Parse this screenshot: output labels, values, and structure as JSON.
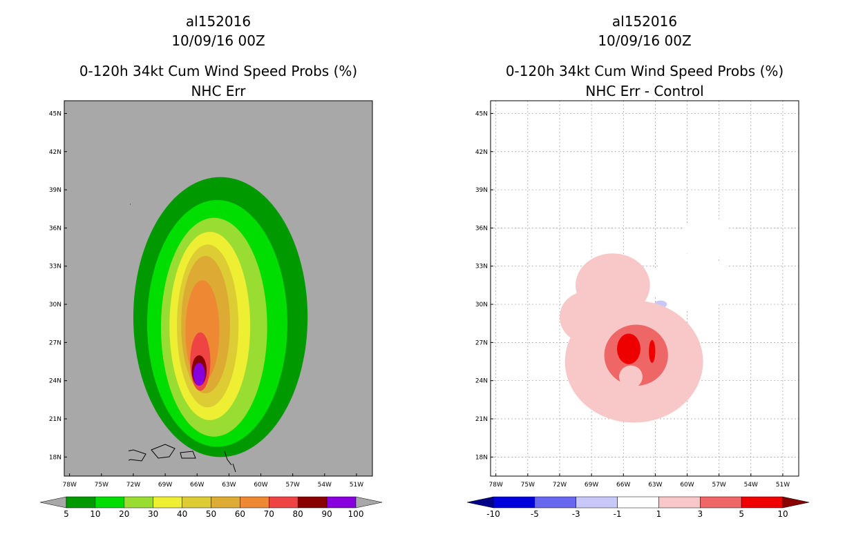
{
  "chart_data": [
    {
      "type": "heatmap",
      "title": [
        "al152016",
        "10/09/16 00Z",
        "0-120h 34kt Cum Wind Speed Probs (%)",
        "NHC Err"
      ],
      "xlabel": "",
      "ylabel": "",
      "x_ticks": [
        "78W",
        "75W",
        "72W",
        "69W",
        "66W",
        "63W",
        "60W",
        "57W",
        "54W",
        "51W"
      ],
      "y_ticks": [
        "45N",
        "42N",
        "39N",
        "36N",
        "33N",
        "30N",
        "27N",
        "24N",
        "21N",
        "18N"
      ],
      "xlim": [
        -78.5,
        -49.5
      ],
      "ylim": [
        16.5,
        46
      ],
      "grid": false,
      "background_color": "#a8a8a8",
      "colorbar": {
        "labels": [
          "5",
          "10",
          "20",
          "30",
          "40",
          "50",
          "60",
          "70",
          "80",
          "90",
          "100"
        ],
        "colors": [
          "#009900",
          "#00dd00",
          "#99dd33",
          "#eeee33",
          "#ddcc33",
          "#ddaa33",
          "#ee8833",
          "#ee4444",
          "#880000",
          "#8800dd"
        ],
        "under_color": "#a8a8a8",
        "over_color": "#a8a8a8"
      },
      "contours": [
        {
          "level": 5,
          "center": [
            -63.8,
            29.0
          ],
          "rx": 8.2,
          "ry": 11.0
        },
        {
          "level": 10,
          "center": [
            -64.1,
            28.5
          ],
          "rx": 6.6,
          "ry": 9.7
        },
        {
          "level": 20,
          "center": [
            -64.4,
            28.2
          ],
          "rx": 5.0,
          "ry": 8.6
        },
        {
          "level": 30,
          "center": [
            -64.8,
            28.3
          ],
          "rx": 3.8,
          "ry": 7.4
        },
        {
          "level": 40,
          "center": [
            -65.0,
            28.3
          ],
          "rx": 2.9,
          "ry": 6.4
        },
        {
          "level": 50,
          "center": [
            -65.2,
            28.4
          ],
          "rx": 2.3,
          "ry": 5.4
        },
        {
          "level": 60,
          "center": [
            -65.5,
            27.9
          ],
          "rx": 1.6,
          "ry": 4.0
        },
        {
          "level": 70,
          "center": [
            -65.7,
            25.5
          ],
          "rx": 0.95,
          "ry": 2.3
        },
        {
          "level": 80,
          "center": [
            -65.8,
            24.8
          ],
          "rx": 0.7,
          "ry": 1.2
        },
        {
          "level": 90,
          "center": [
            -65.8,
            24.5
          ],
          "rx": 0.55,
          "ry": 0.9
        },
        {
          "level": 100,
          "center": [
            -65.8,
            24.4
          ],
          "rx": 0.45,
          "ry": 0.75
        }
      ]
    },
    {
      "type": "heatmap",
      "title": [
        "al152016",
        "10/09/16 00Z",
        "0-120h 34kt Cum Wind Speed Probs (%)",
        "NHC Err - Control"
      ],
      "xlabel": "",
      "ylabel": "",
      "x_ticks": [
        "78W",
        "75W",
        "72W",
        "69W",
        "66W",
        "63W",
        "60W",
        "57W",
        "54W",
        "51W"
      ],
      "y_ticks": [
        "45N",
        "42N",
        "39N",
        "36N",
        "33N",
        "30N",
        "27N",
        "24N",
        "21N",
        "18N"
      ],
      "xlim": [
        -78.5,
        -49.5
      ],
      "ylim": [
        16.5,
        46
      ],
      "grid": true,
      "background_color": "#ffffff",
      "colorbar": {
        "labels": [
          "-10",
          "-5",
          "-3",
          "-1",
          "1",
          "3",
          "5",
          "10"
        ],
        "colors": [
          "#0000dd",
          "#6666ee",
          "#c8c8f8",
          "#ffffff",
          "#f8c8c8",
          "#ee6666",
          "#ee0000"
        ],
        "under_color": "#000088",
        "over_color": "#880000"
      },
      "contours": [
        {
          "level": -1,
          "center": [
            -59.5,
            31.7
          ],
          "rx": 4.0,
          "ry": 2.2
        },
        {
          "level": -1,
          "center": [
            -58.3,
            35.2
          ],
          "rx": 2.3,
          "ry": 1.8
        },
        {
          "level": -3,
          "center": [
            -62.5,
            30.0
          ],
          "rx": 0.6,
          "ry": 0.3
        },
        {
          "level": 1,
          "center": [
            -65.0,
            25.5
          ],
          "rx": 6.5,
          "ry": 4.8
        },
        {
          "level": 1,
          "center": [
            -67.0,
            31.5
          ],
          "rx": 3.5,
          "ry": 2.5
        },
        {
          "level": 1,
          "center": [
            -69.5,
            29.0
          ],
          "rx": 2.5,
          "ry": 2.0
        },
        {
          "level": 3,
          "center": [
            -64.8,
            26.0
          ],
          "rx": 3.0,
          "ry": 2.4
        },
        {
          "level": 5,
          "center": [
            -65.5,
            26.5
          ],
          "rx": 1.1,
          "ry": 1.2
        },
        {
          "level": 5,
          "center": [
            -63.3,
            26.3
          ],
          "rx": 0.3,
          "ry": 0.9
        },
        {
          "level": 1,
          "center": [
            -65.3,
            24.3
          ],
          "rx": 1.1,
          "ry": 0.9
        }
      ]
    }
  ]
}
